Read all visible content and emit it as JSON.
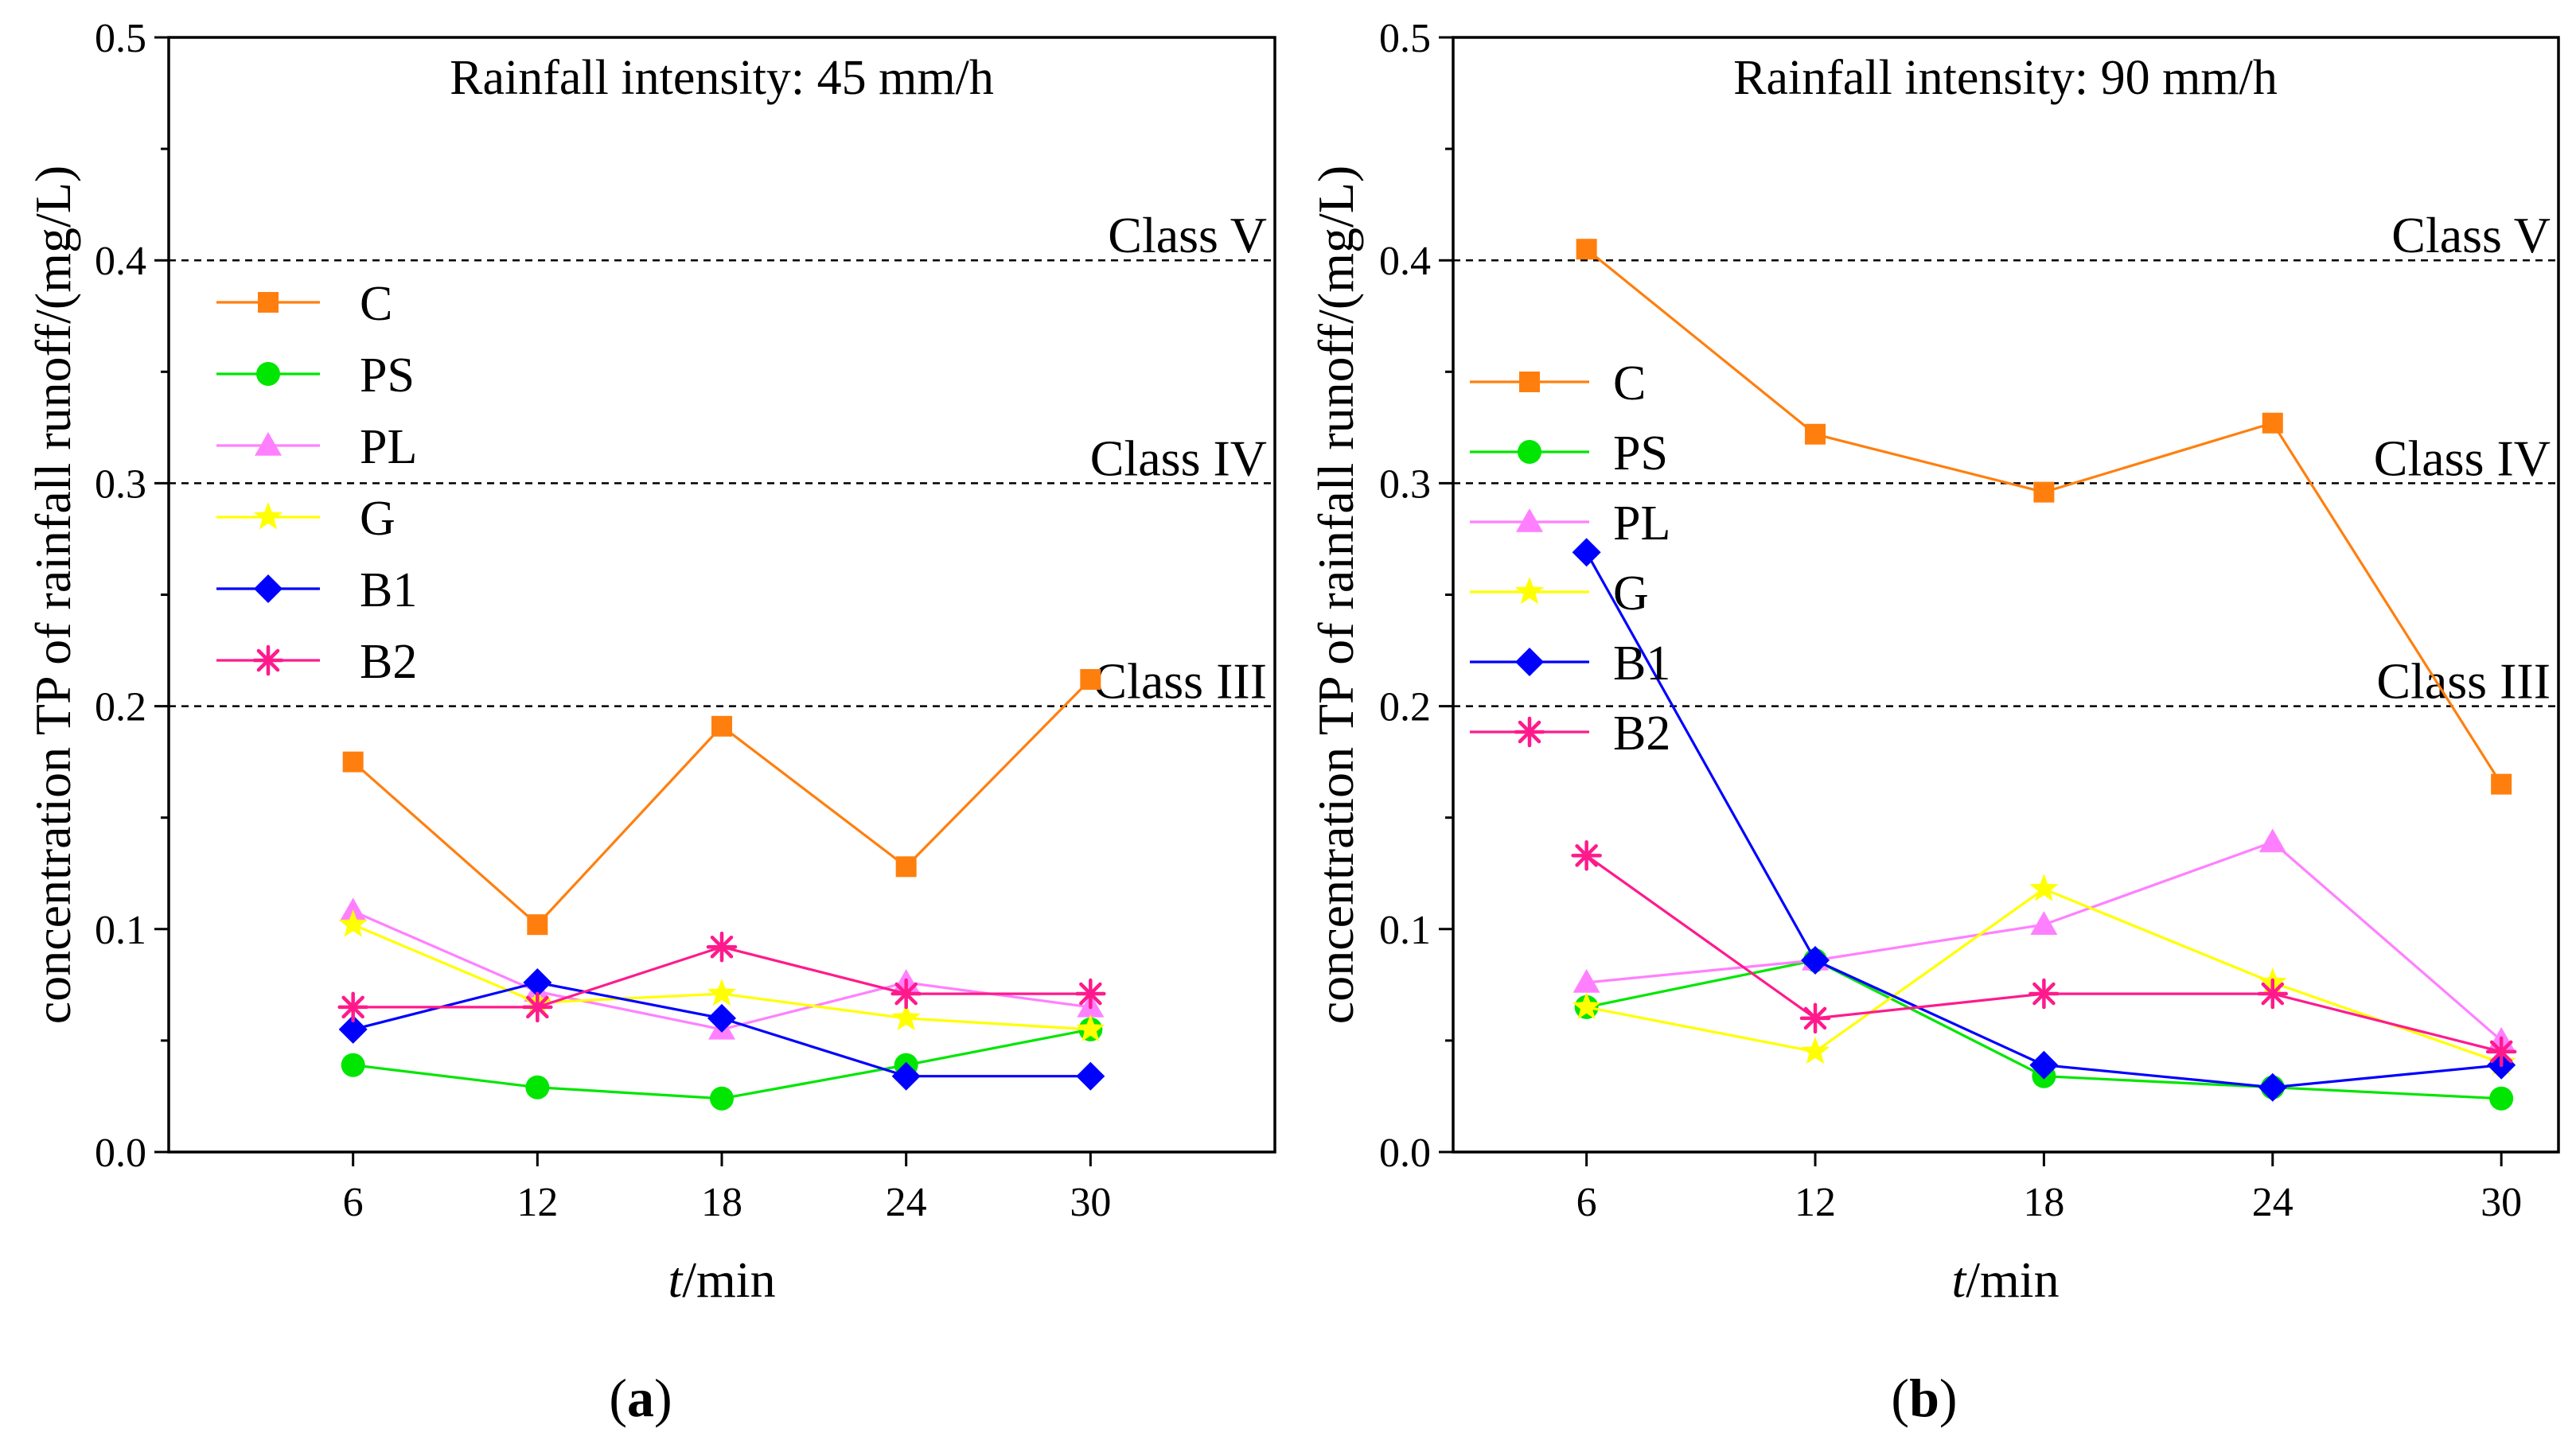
{
  "chart_data": [
    {
      "type": "line",
      "panel_label": "a",
      "title": "Rainfall intensity: 45 mm/h",
      "xlabel_italic": "t",
      "xlabel_rest": "/min",
      "ylabel": "concentration TP of rainfall runoff/(mg/L)",
      "x": [
        6,
        12,
        18,
        24,
        30
      ],
      "xlim": [
        0,
        36
      ],
      "ylim": [
        0,
        0.5
      ],
      "x_ticks": [
        "6",
        "12",
        "18",
        "24",
        "30"
      ],
      "y_ticks": [
        "0.0",
        "0.1",
        "0.2",
        "0.3",
        "0.4",
        "0.5"
      ],
      "reference_lines": [
        {
          "label": "Class V",
          "value": 0.4
        },
        {
          "label": "Class IV",
          "value": 0.3
        },
        {
          "label": "Class III",
          "value": 0.2
        }
      ],
      "legend_position": "left",
      "series": [
        {
          "name": "C",
          "color": "#ff7f0e",
          "marker": "square",
          "values": [
            0.175,
            0.102,
            0.191,
            0.128,
            0.212
          ]
        },
        {
          "name": "PS",
          "color": "#00e600",
          "marker": "circle",
          "values": [
            0.039,
            0.029,
            0.024,
            0.039,
            0.055
          ]
        },
        {
          "name": "PL",
          "color": "#ff80ff",
          "marker": "triangle",
          "values": [
            0.108,
            0.072,
            0.055,
            0.076,
            0.065
          ]
        },
        {
          "name": "G",
          "color": "#ffff00",
          "marker": "star",
          "values": [
            0.102,
            0.067,
            0.071,
            0.06,
            0.055
          ]
        },
        {
          "name": "B1",
          "color": "#0000ff",
          "marker": "diamond",
          "values": [
            0.055,
            0.076,
            0.06,
            0.034,
            0.034
          ]
        },
        {
          "name": "B2",
          "color": "#ff1a8c",
          "marker": "asterisk",
          "values": [
            0.065,
            0.065,
            0.092,
            0.071,
            0.071
          ]
        }
      ]
    },
    {
      "type": "line",
      "panel_label": "b",
      "title": "Rainfall intensity: 90 mm/h",
      "xlabel_italic": "t",
      "xlabel_rest": "/min",
      "ylabel": "concentration TP of rainfall runoff/(mg/L)",
      "x": [
        6,
        12,
        18,
        24,
        30
      ],
      "xlim": [
        2.5,
        31.5
      ],
      "ylim": [
        0,
        0.5
      ],
      "x_ticks": [
        "6",
        "12",
        "18",
        "24",
        "30"
      ],
      "y_ticks": [
        "0.0",
        "0.1",
        "0.2",
        "0.3",
        "0.4",
        "0.5"
      ],
      "reference_lines": [
        {
          "label": "Class V",
          "value": 0.4
        },
        {
          "label": "Class IV",
          "value": 0.3
        },
        {
          "label": "Class III",
          "value": 0.2
        }
      ],
      "legend_position": "left",
      "series": [
        {
          "name": "C",
          "color": "#ff7f0e",
          "marker": "square",
          "values": [
            0.405,
            0.322,
            0.296,
            0.327,
            0.165
          ]
        },
        {
          "name": "PS",
          "color": "#00e600",
          "marker": "circle",
          "values": [
            0.065,
            0.086,
            0.034,
            0.029,
            0.024
          ]
        },
        {
          "name": "PL",
          "color": "#ff80ff",
          "marker": "triangle",
          "values": [
            0.076,
            0.086,
            0.102,
            0.139,
            0.05
          ]
        },
        {
          "name": "G",
          "color": "#ffff00",
          "marker": "star",
          "values": [
            0.065,
            0.045,
            0.118,
            0.076,
            0.04
          ]
        },
        {
          "name": "B1",
          "color": "#0000ff",
          "marker": "diamond",
          "values": [
            0.269,
            0.086,
            0.039,
            0.029,
            0.039
          ]
        },
        {
          "name": "B2",
          "color": "#ff1a8c",
          "marker": "asterisk",
          "values": [
            0.133,
            0.06,
            0.071,
            0.071,
            0.045
          ]
        }
      ]
    }
  ]
}
